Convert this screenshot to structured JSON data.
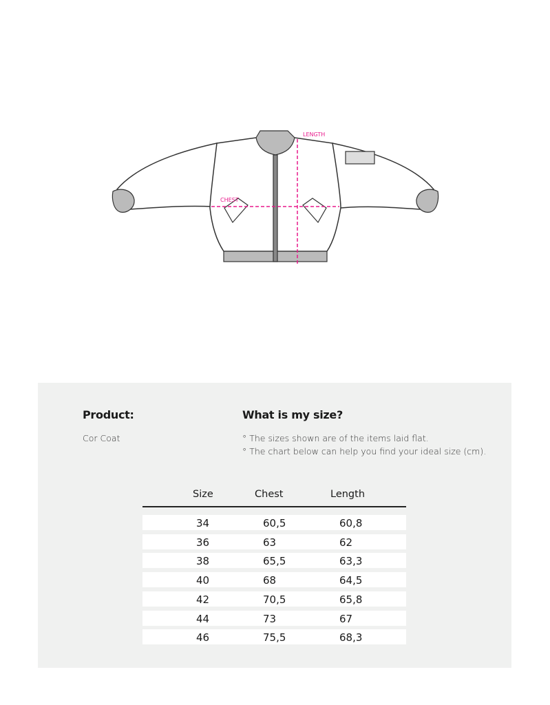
{
  "diagram": {
    "length_label": "LENGTH",
    "chest_label": "CHEST",
    "accent": "#e8198b"
  },
  "product": {
    "heading": "Product:",
    "name": "Cor Coat"
  },
  "size_help": {
    "heading": "What is my size?",
    "notes": [
      "° The sizes shown are of the items laid flat.",
      "° The chart below can help you find your ideal size (cm)."
    ]
  },
  "table": {
    "headers": [
      "Size",
      "Chest",
      "Length"
    ],
    "rows": [
      [
        "34",
        "60,5",
        "60,8"
      ],
      [
        "36",
        "63",
        "62"
      ],
      [
        "38",
        "65,5",
        "63,3"
      ],
      [
        "40",
        "68",
        "64,5"
      ],
      [
        "42",
        "70,5",
        "65,8"
      ],
      [
        "44",
        "73",
        "67"
      ],
      [
        "46",
        "75,5",
        "68,3"
      ]
    ]
  }
}
